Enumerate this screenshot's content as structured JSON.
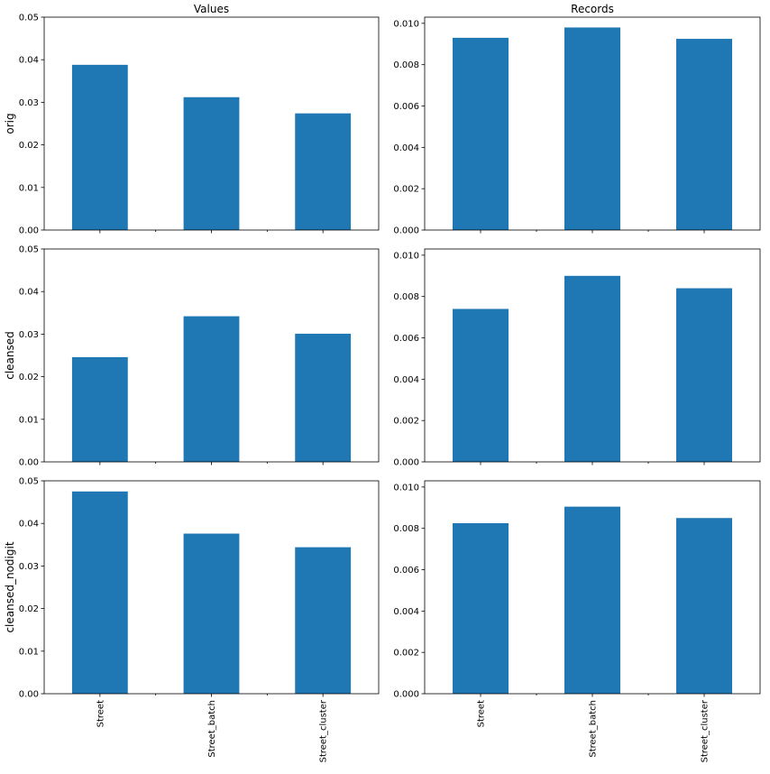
{
  "chart_data": {
    "type": "bar",
    "layout": "3x2 grid of bar charts",
    "column_titles": [
      "Values",
      "Records"
    ],
    "row_labels": [
      "orig",
      "cleansed",
      "cleansed_nodigit"
    ],
    "categories": [
      "Street",
      "Street_batch",
      "Street_cluster"
    ],
    "bar_color": "#1f77b4",
    "grid": false,
    "subplots": [
      {
        "row": "orig",
        "column": "Values",
        "values": [
          0.0388,
          0.0312,
          0.0274
        ],
        "ylim": [
          0,
          0.05
        ],
        "yticks": [
          "0.00",
          "0.01",
          "0.02",
          "0.03",
          "0.04",
          "0.05"
        ]
      },
      {
        "row": "orig",
        "column": "Records",
        "values": [
          0.0093,
          0.0098,
          0.00925
        ],
        "ylim": [
          0,
          0.0103
        ],
        "yticks": [
          "0.000",
          "0.002",
          "0.004",
          "0.006",
          "0.008",
          "0.010"
        ]
      },
      {
        "row": "cleansed",
        "column": "Values",
        "values": [
          0.0246,
          0.0342,
          0.0301
        ],
        "ylim": [
          0,
          0.05
        ],
        "yticks": [
          "0.00",
          "0.01",
          "0.02",
          "0.03",
          "0.04",
          "0.05"
        ]
      },
      {
        "row": "cleansed",
        "column": "Records",
        "values": [
          0.0074,
          0.009,
          0.0084
        ],
        "ylim": [
          0,
          0.0103
        ],
        "yticks": [
          "0.000",
          "0.002",
          "0.004",
          "0.006",
          "0.008",
          "0.010"
        ]
      },
      {
        "row": "cleansed_nodigit",
        "column": "Values",
        "values": [
          0.0475,
          0.0376,
          0.0344
        ],
        "ylim": [
          0,
          0.05
        ],
        "yticks": [
          "0.00",
          "0.01",
          "0.02",
          "0.03",
          "0.04",
          "0.05"
        ]
      },
      {
        "row": "cleansed_nodigit",
        "column": "Records",
        "values": [
          0.00825,
          0.00905,
          0.0085
        ],
        "ylim": [
          0,
          0.0103
        ],
        "yticks": [
          "0.000",
          "0.002",
          "0.004",
          "0.006",
          "0.008",
          "0.010"
        ]
      }
    ]
  }
}
